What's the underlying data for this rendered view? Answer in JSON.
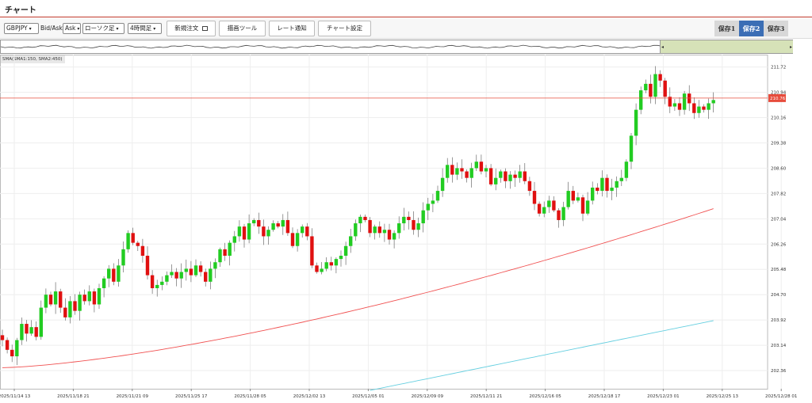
{
  "title": "チャート",
  "toolbar": {
    "pair": "GBPJPY",
    "price_type_label": "Bid/Ask",
    "price_type": "Ask",
    "candle_type": "ローソク足",
    "timeframe": "4時間足",
    "new_order": "新規注文",
    "drawing_tools": "描画ツール",
    "rate_alert": "レート通知",
    "chart_settings": "チャート設定",
    "saves": [
      "保存1",
      "保存2",
      "保存3"
    ],
    "active_save": "保存2"
  },
  "indicator_label": "SMA(SMA1:150, SMA2:450)",
  "colors": {
    "up": "#22cc22",
    "down": "#e01010",
    "sma1": "#f05050",
    "sma2": "#66cfe0",
    "price_line": "#e74c3c",
    "accent": "#c0392b"
  },
  "chart_data": {
    "type": "candlestick",
    "symbol": "GBPJPY",
    "timeframe": "4時間足",
    "current_price": 210.76,
    "y_ticks": [
      211.72,
      210.94,
      210.16,
      209.38,
      208.6,
      207.82,
      207.04,
      206.26,
      205.48,
      204.7,
      203.92,
      203.14,
      202.36
    ],
    "y_range": [
      201.8,
      212.1
    ],
    "x_ticks": [
      "2025/11/14 13",
      "2025/11/18 21",
      "2025/11/21 09",
      "2025/11/25 17",
      "2025/11/28 05",
      "2025/12/02 13",
      "2025/12/05 01",
      "2025/12/09 09",
      "2025/12/11 21",
      "2025/12/16 05",
      "2025/12/18 17",
      "2025/12/23 01",
      "2025/12/25 13",
      "2025/12/28 01"
    ],
    "closes": [
      203.3,
      203.0,
      202.8,
      203.3,
      203.8,
      203.5,
      203.7,
      203.4,
      204.3,
      204.7,
      204.4,
      204.8,
      204.3,
      204.0,
      204.5,
      204.2,
      204.7,
      204.5,
      204.8,
      204.4,
      204.9,
      205.2,
      205.5,
      205.1,
      205.6,
      206.1,
      206.6,
      206.3,
      206.2,
      205.9,
      205.3,
      204.9,
      205.0,
      205.1,
      205.3,
      205.4,
      205.2,
      205.4,
      205.5,
      205.3,
      205.6,
      205.4,
      205.1,
      205.5,
      205.7,
      206.1,
      205.9,
      206.3,
      206.5,
      206.8,
      206.4,
      206.9,
      207.0,
      206.8,
      206.5,
      206.7,
      206.9,
      206.8,
      207.0,
      206.6,
      206.2,
      206.6,
      206.8,
      206.5,
      205.6,
      205.4,
      205.5,
      205.7,
      205.6,
      205.8,
      205.9,
      206.2,
      206.5,
      206.9,
      207.1,
      207.0,
      206.6,
      206.8,
      206.6,
      206.7,
      206.4,
      206.6,
      206.9,
      207.1,
      207.0,
      206.7,
      206.9,
      207.3,
      207.5,
      207.6,
      207.9,
      208.3,
      208.7,
      208.4,
      208.6,
      208.5,
      208.3,
      208.6,
      208.8,
      208.5,
      208.6,
      208.1,
      208.3,
      208.5,
      208.2,
      208.4,
      208.3,
      208.5,
      208.2,
      207.9,
      207.5,
      207.2,
      207.4,
      207.6,
      207.3,
      207.0,
      207.4,
      207.9,
      207.6,
      207.7,
      207.2,
      207.6,
      208.0,
      207.9,
      208.3,
      207.9,
      208.0,
      208.2,
      208.3,
      208.8,
      209.6,
      210.4,
      211.0,
      211.2,
      210.8,
      211.5,
      211.3,
      210.8,
      210.5,
      210.6,
      210.4,
      210.9,
      210.6,
      210.3,
      210.5,
      210.4,
      210.6,
      210.7
    ]
  }
}
